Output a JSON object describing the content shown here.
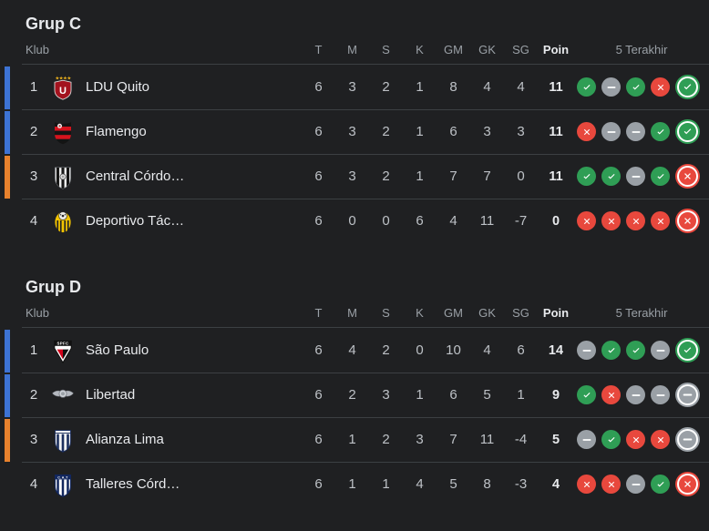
{
  "page": {
    "background": "#1f2022"
  },
  "table": {
    "klub_label": "Klub",
    "columns": [
      "T",
      "M",
      "S",
      "K",
      "GM",
      "GK",
      "SG",
      "Poin"
    ],
    "last5_label": "5 Terakhir"
  },
  "form_icons": {
    "win": {
      "icon": "check-icon",
      "color": "#2f9e55"
    },
    "draw": {
      "icon": "minus-icon",
      "color": "#9aa0a6"
    },
    "loss": {
      "icon": "x-icon",
      "color": "#e8483d"
    }
  },
  "qualification_colors": {
    "blue": "#3d73d4",
    "orange": "#e8822d"
  },
  "groups": [
    {
      "title": "Grup C",
      "rows": [
        {
          "rank": "1",
          "team": "LDU Quito",
          "crest": "ldu-quito",
          "qualification": "blue",
          "stats": [
            "6",
            "3",
            "2",
            "1",
            "8",
            "4",
            "4"
          ],
          "poin": "11",
          "last5": [
            "win",
            "draw",
            "win",
            "loss",
            "win"
          ]
        },
        {
          "rank": "2",
          "team": "Flamengo",
          "crest": "flamengo",
          "qualification": "blue",
          "stats": [
            "6",
            "3",
            "2",
            "1",
            "6",
            "3",
            "3"
          ],
          "poin": "11",
          "last5": [
            "loss",
            "draw",
            "draw",
            "win",
            "win"
          ]
        },
        {
          "rank": "3",
          "team": "Central Córdo…",
          "crest": "central-cordoba",
          "qualification": "orange",
          "stats": [
            "6",
            "3",
            "2",
            "1",
            "7",
            "7",
            "0"
          ],
          "poin": "11",
          "last5": [
            "win",
            "win",
            "draw",
            "win",
            "loss"
          ]
        },
        {
          "rank": "4",
          "team": "Deportivo Tác…",
          "crest": "deportivo-tachira",
          "qualification": "none",
          "stats": [
            "6",
            "0",
            "0",
            "6",
            "4",
            "11",
            "-7"
          ],
          "poin": "0",
          "last5": [
            "loss",
            "loss",
            "loss",
            "loss",
            "loss"
          ]
        }
      ]
    },
    {
      "title": "Grup D",
      "rows": [
        {
          "rank": "1",
          "team": "São Paulo",
          "crest": "sao-paulo",
          "qualification": "blue",
          "stats": [
            "6",
            "4",
            "2",
            "0",
            "10",
            "4",
            "6"
          ],
          "poin": "14",
          "last5": [
            "draw",
            "win",
            "win",
            "draw",
            "win"
          ]
        },
        {
          "rank": "2",
          "team": "Libertad",
          "crest": "libertad",
          "qualification": "blue",
          "stats": [
            "6",
            "2",
            "3",
            "1",
            "6",
            "5",
            "1"
          ],
          "poin": "9",
          "last5": [
            "win",
            "loss",
            "draw",
            "draw",
            "draw"
          ]
        },
        {
          "rank": "3",
          "team": "Alianza Lima",
          "crest": "alianza-lima",
          "qualification": "orange",
          "stats": [
            "6",
            "1",
            "2",
            "3",
            "7",
            "11",
            "-4"
          ],
          "poin": "5",
          "last5": [
            "draw",
            "win",
            "loss",
            "loss",
            "draw"
          ]
        },
        {
          "rank": "4",
          "team": "Talleres Córd…",
          "crest": "talleres-cordoba",
          "qualification": "none",
          "stats": [
            "6",
            "1",
            "1",
            "4",
            "5",
            "8",
            "-3"
          ],
          "poin": "4",
          "last5": [
            "loss",
            "loss",
            "draw",
            "win",
            "loss"
          ]
        }
      ]
    }
  ]
}
